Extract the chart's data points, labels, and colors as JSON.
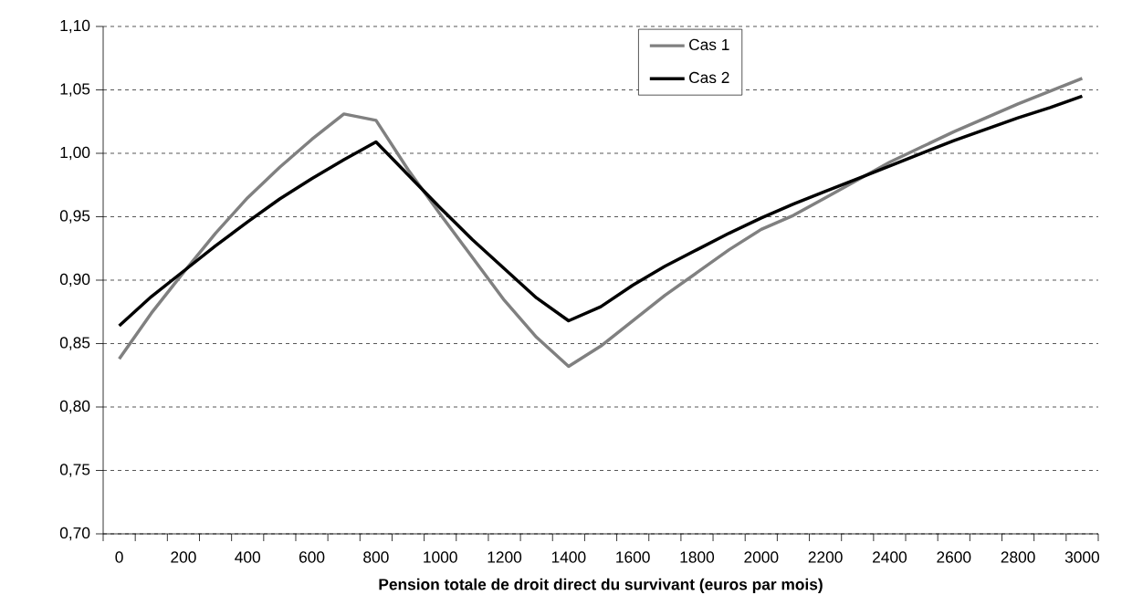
{
  "chart_data": {
    "type": "line",
    "xlabel": "Pension totale de droit direct du survivant (euros par mois)",
    "categories": [
      "0",
      null,
      "200",
      null,
      "400",
      null,
      "600",
      null,
      "800",
      null,
      "1000",
      null,
      "1200",
      null,
      "1400",
      null,
      "1600",
      null,
      "1800",
      null,
      "2000",
      null,
      "2200",
      null,
      "2400",
      null,
      "2600",
      null,
      "2800",
      null,
      "3000"
    ],
    "series": [
      {
        "name": "Cas 1",
        "color": "#808080",
        "values": [
          0.838,
          0.874,
          0.906,
          0.937,
          0.965,
          0.989,
          1.011,
          1.031,
          1.026,
          0.987,
          0.952,
          0.918,
          0.884,
          0.855,
          0.832,
          0.848,
          0.868,
          0.888,
          0.906,
          0.924,
          0.94,
          0.951,
          0.965,
          0.979,
          0.993,
          1.005,
          1.017,
          1.028,
          1.039,
          1.049,
          1.059
        ]
      },
      {
        "name": "Cas 2",
        "color": "#000000",
        "values": [
          0.864,
          0.887,
          0.907,
          0.927,
          0.946,
          0.964,
          0.98,
          0.995,
          1.009,
          0.983,
          0.957,
          0.932,
          0.909,
          0.886,
          0.868,
          0.879,
          0.896,
          0.911,
          0.924,
          0.937,
          0.949,
          0.96,
          0.97,
          0.98,
          0.99,
          1.0,
          1.01,
          1.019,
          1.028,
          1.036,
          1.045
        ]
      }
    ],
    "ylim": [
      0.7,
      1.1
    ],
    "yticks": [
      {
        "value": 0.7,
        "label": "0,70"
      },
      {
        "value": 0.75,
        "label": "0,75"
      },
      {
        "value": 0.8,
        "label": "0,80"
      },
      {
        "value": 0.85,
        "label": "0,85"
      },
      {
        "value": 0.9,
        "label": "0,90"
      },
      {
        "value": 0.95,
        "label": "0,95"
      },
      {
        "value": 1.0,
        "label": "1,00"
      },
      {
        "value": 1.05,
        "label": "1,05"
      },
      {
        "value": 1.1,
        "label": "1,10"
      }
    ],
    "grid": "y",
    "legend": "top",
    "marker": "none",
    "line_style": "solid"
  }
}
